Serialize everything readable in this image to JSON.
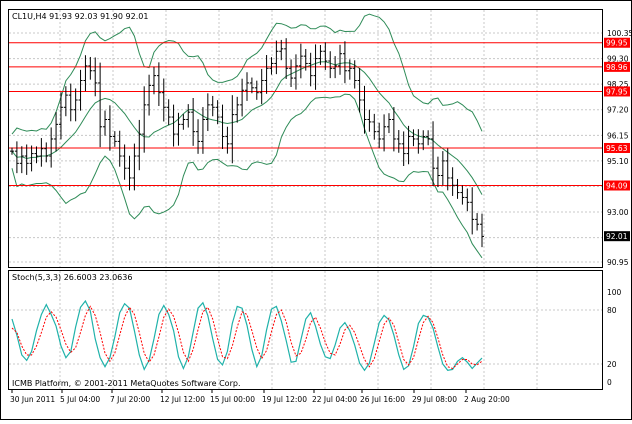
{
  "header": "CL1U,H4  91.93 92.03 91.90 92.01",
  "stoch_header": "Stoch(5,3,3) 26.6003 23.0636",
  "footer": "ICMB Platform, © 2001-2011 MetaQuotes Software Corp.",
  "colors": {
    "background": "#ffffff",
    "grid": "#c8c8c8",
    "bars": "#000000",
    "bands": "#2e8b57",
    "resistance": "#ff0000",
    "stoch_main": "#20b2aa",
    "stoch_signal": "#ff0000",
    "current_price_box": "#000000",
    "level_box": "#ff0000"
  },
  "price_axis": {
    "labels": [
      "100.35",
      "99.30",
      "98.25",
      "97.20",
      "96.15",
      "95.10",
      "94.05",
      "93.00",
      "91.95",
      "90.95"
    ],
    "min": 90.95,
    "max": 100.35
  },
  "levels": [
    "99.95",
    "98.96",
    "97.95",
    "95.63",
    "94.09"
  ],
  "current_price": "92.01",
  "stoch_axis": {
    "labels": [
      "100",
      "80",
      "20",
      "0"
    ]
  },
  "time_labels": [
    "30 Jun 2011",
    "5 Jul 04:00",
    "7 Jul 20:00",
    "12 Jul 12:00",
    "15 Jul 00:00",
    "19 Jul 12:00",
    "22 Jul 04:00",
    "26 Jul 16:00",
    "29 Jul 08:00",
    "2 Aug 20:00"
  ],
  "chart_data": {
    "type": "ohlc",
    "price_close": [
      95.5,
      95.0,
      95.3,
      95.0,
      95.4,
      95.3,
      95.6,
      95.3,
      96.0,
      96.6,
      97.3,
      97.8,
      97.2,
      97.6,
      98.4,
      99.0,
      98.8,
      98.3,
      96.5,
      96.8,
      96.1,
      95.9,
      95.3,
      94.8,
      94.4,
      95.3,
      96.2,
      97.4,
      98.2,
      98.6,
      97.9,
      97.3,
      96.9,
      96.2,
      96.6,
      96.8,
      97.1,
      96.3,
      95.9,
      96.8,
      97.4,
      97.3,
      96.9,
      96.1,
      95.8,
      97.0,
      97.4,
      98.0,
      98.3,
      98.1,
      97.9,
      98.4,
      98.9,
      99.1,
      99.6,
      99.7,
      98.9,
      98.5,
      99.0,
      99.4,
      99.1,
      98.6,
      99.3,
      99.6,
      99.2,
      98.9,
      99.0,
      99.5,
      98.8,
      98.9,
      98.4,
      97.6,
      96.8,
      96.7,
      96.3,
      96.0,
      96.5,
      96.8,
      96.0,
      95.8,
      95.4,
      96.1,
      96.0,
      95.8,
      96.1,
      96.0,
      94.8,
      94.5,
      95.1,
      94.4,
      94.1,
      93.8,
      93.6,
      93.4,
      92.7,
      92.5,
      92.0
    ],
    "stoch_main": [
      70,
      52,
      30,
      24,
      34,
      57,
      75,
      86,
      75,
      62,
      40,
      27,
      34,
      61,
      83,
      90,
      79,
      48,
      27,
      17,
      27,
      50,
      77,
      87,
      82,
      57,
      30,
      14,
      24,
      48,
      75,
      85,
      75,
      57,
      28,
      15,
      28,
      55,
      82,
      88,
      74,
      48,
      25,
      19,
      34,
      65,
      84,
      82,
      63,
      36,
      17,
      29,
      58,
      81,
      84,
      68,
      46,
      22,
      23,
      47,
      70,
      77,
      62,
      42,
      28,
      26,
      41,
      60,
      66,
      57,
      41,
      21,
      13,
      21,
      43,
      66,
      74,
      69,
      52,
      30,
      14,
      18,
      39,
      65,
      74,
      72,
      60,
      39,
      20,
      13,
      14,
      23,
      27,
      22,
      15,
      21,
      26.6
    ],
    "stoch_signal": [
      60,
      55,
      40,
      30,
      30,
      40,
      55,
      72,
      78,
      72,
      58,
      42,
      33,
      38,
      55,
      74,
      84,
      74,
      55,
      32,
      23,
      32,
      52,
      72,
      83,
      75,
      55,
      32,
      22,
      30,
      50,
      72,
      81,
      73,
      55,
      33,
      23,
      36,
      58,
      78,
      83,
      70,
      48,
      28,
      26,
      40,
      61,
      78,
      75,
      57,
      38,
      26,
      35,
      56,
      75,
      80,
      67,
      44,
      29,
      32,
      47,
      66,
      72,
      60,
      44,
      32,
      30,
      42,
      58,
      63,
      55,
      40,
      25,
      17,
      26,
      45,
      64,
      71,
      63,
      44,
      25,
      19,
      27,
      47,
      66,
      73,
      66,
      49,
      30,
      17,
      15,
      20,
      25,
      25,
      20,
      19,
      23.1
    ]
  }
}
